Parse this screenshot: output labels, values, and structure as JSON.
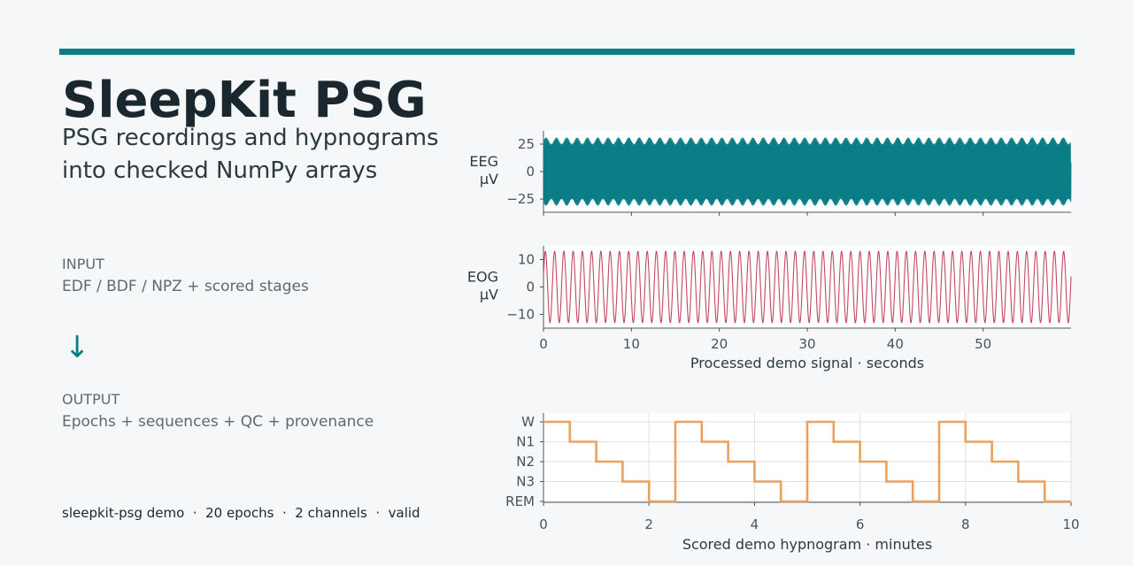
{
  "header": {
    "title": "SleepKit PSG",
    "subtitle_line1": "PSG recordings and hypnograms",
    "subtitle_line2": "into checked NumPy arrays"
  },
  "input": {
    "label": "INPUT",
    "text": "EDF / BDF / NPZ + scored stages"
  },
  "arrow_glyph": "↓",
  "output": {
    "label": "OUTPUT",
    "text": "Epochs + sequences + QC + provenance"
  },
  "footer": "sleepkit-psg demo  ·  20 epochs  ·  2 channels  ·  valid",
  "colors": {
    "accent": "#0b7d86",
    "eeg": "#0b7d86",
    "eog": "#c44760",
    "hypnogram": "#eba05e"
  },
  "chart_data": [
    {
      "type": "line",
      "series": [
        {
          "name": "EEG",
          "waveform": "sinusoid",
          "cycles_per_second": 10,
          "amplitude": 28,
          "amplitude_modulation": 3,
          "x_range": [
            0,
            60
          ]
        }
      ],
      "ylabel": "EEG\nµV",
      "xlim": [
        0,
        60
      ],
      "ylim": [
        -37,
        37
      ],
      "x_ticks": [
        0,
        10,
        20,
        30,
        40,
        50
      ],
      "y_ticks": [
        25,
        0,
        -25
      ],
      "y_tick_labels": [
        "25",
        "0",
        "−25"
      ],
      "grid": false
    },
    {
      "type": "line",
      "series": [
        {
          "name": "EOG",
          "waveform": "sinusoid",
          "cycles_per_second": 0.95,
          "amplitude": 13,
          "x_range": [
            0,
            60
          ]
        }
      ],
      "ylabel": "EOG\nµV",
      "xlabel": "Processed demo signal · seconds",
      "xlim": [
        0,
        60
      ],
      "ylim": [
        -15,
        15
      ],
      "x_ticks": [
        0,
        10,
        20,
        30,
        40,
        50
      ],
      "y_ticks": [
        10,
        0,
        -10
      ],
      "y_tick_labels": [
        "10",
        "0",
        "−10"
      ],
      "grid": false
    },
    {
      "type": "line",
      "step": true,
      "xlabel": "Scored demo hypnogram · minutes",
      "xlim": [
        0,
        10
      ],
      "x_ticks": [
        0,
        2,
        4,
        6,
        8,
        10
      ],
      "categories": [
        "W",
        "N1",
        "N2",
        "N3",
        "REM"
      ],
      "x": [
        0,
        0.5,
        1,
        1.5,
        2,
        2.5,
        3,
        3.5,
        4,
        4.5,
        5,
        5.5,
        6,
        6.5,
        7,
        7.5,
        8,
        8.5,
        9,
        9.5
      ],
      "values": [
        "W",
        "N1",
        "N2",
        "N3",
        "REM",
        "W",
        "N1",
        "N2",
        "N3",
        "REM",
        "W",
        "N1",
        "N2",
        "N3",
        "REM",
        "W",
        "N1",
        "N2",
        "N3",
        "REM"
      ],
      "grid": true
    }
  ]
}
